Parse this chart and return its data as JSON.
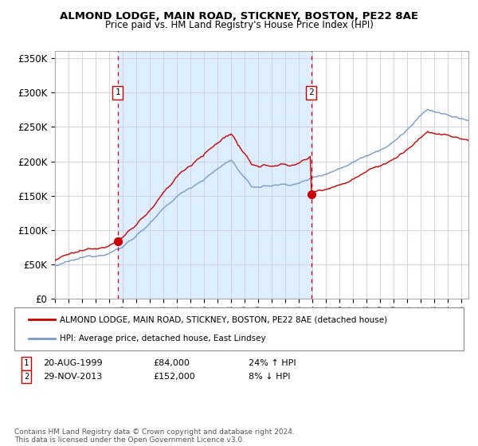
{
  "title": "ALMOND LODGE, MAIN ROAD, STICKNEY, BOSTON, PE22 8AE",
  "subtitle": "Price paid vs. HM Land Registry's House Price Index (HPI)",
  "legend_label_red": "ALMOND LODGE, MAIN ROAD, STICKNEY, BOSTON, PE22 8AE (detached house)",
  "legend_label_blue": "HPI: Average price, detached house, East Lindsey",
  "sale1_date": "20-AUG-1999",
  "sale1_price": "£84,000",
  "sale1_hpi": "24% ↑ HPI",
  "sale1_year": 1999.63,
  "sale1_value": 84000,
  "sale2_date": "29-NOV-2013",
  "sale2_price": "£152,000",
  "sale2_hpi": "8% ↓ HPI",
  "sale2_year": 2013.91,
  "sale2_value": 152000,
  "ylim": [
    0,
    360000
  ],
  "xlim_start": 1995.0,
  "xlim_end": 2025.5,
  "ytick_values": [
    0,
    50000,
    100000,
    150000,
    200000,
    250000,
    300000,
    350000
  ],
  "ytick_labels": [
    "£0",
    "£50K",
    "£100K",
    "£150K",
    "£200K",
    "£250K",
    "£300K",
    "£350K"
  ],
  "xtick_years": [
    1995,
    1996,
    1997,
    1998,
    1999,
    2000,
    2001,
    2002,
    2003,
    2004,
    2005,
    2006,
    2007,
    2008,
    2009,
    2010,
    2011,
    2012,
    2013,
    2014,
    2015,
    2016,
    2017,
    2018,
    2019,
    2020,
    2021,
    2022,
    2023,
    2024,
    2025
  ],
  "bg_color": "#ddeeff",
  "grid_color": "#ccccdd",
  "red_line_color": "#cc0000",
  "blue_line_color": "#7799cc",
  "footnote": "Contains HM Land Registry data © Crown copyright and database right 2024.\nThis data is licensed under the Open Government Licence v3.0."
}
